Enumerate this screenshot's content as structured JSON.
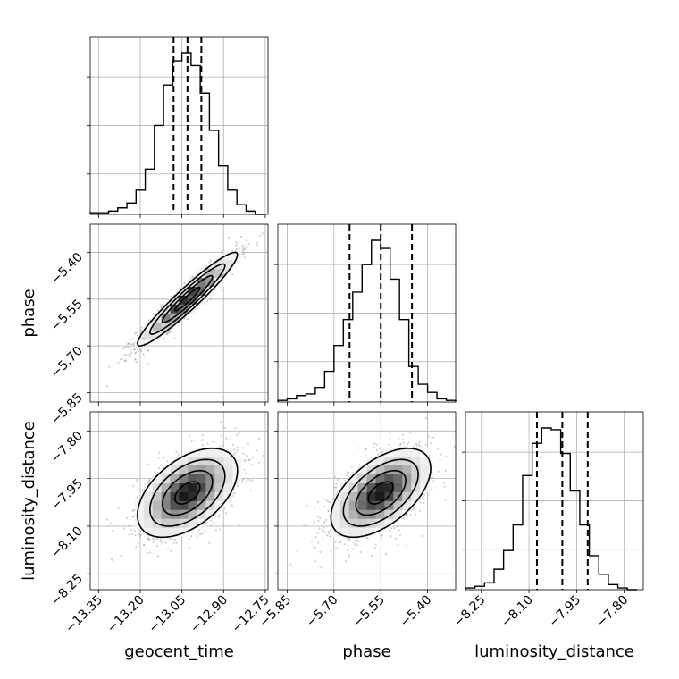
{
  "chart_data": {
    "type": "corner",
    "parameters": [
      "geocent_time",
      "phase",
      "luminosity_distance"
    ],
    "axes": {
      "geocent_time": {
        "range": [
          -13.38,
          -12.74
        ],
        "ticks": [
          -13.35,
          -13.2,
          -13.05,
          -12.9,
          -12.75
        ],
        "tick_labels": [
          "−13.35",
          "−13.20",
          "−13.05",
          "−12.90",
          "−12.75"
        ]
      },
      "phase": {
        "range": [
          -5.88,
          -5.31
        ],
        "ticks": [
          -5.85,
          -5.7,
          -5.55,
          -5.4
        ],
        "tick_labels": [
          "−5.85",
          "−5.70",
          "−5.55",
          "−5.40"
        ]
      },
      "luminosity_distance": {
        "range": [
          -8.3,
          -7.74
        ],
        "ticks": [
          -8.25,
          -8.1,
          -7.95,
          -7.8
        ],
        "tick_labels": [
          "−8.25",
          "−8.10",
          "−7.95",
          "−7.80"
        ]
      }
    },
    "marginals": [
      {
        "parameter": "geocent_time",
        "bin_edges": [
          -13.38,
          -13.347,
          -13.314,
          -13.281,
          -13.248,
          -13.215,
          -13.182,
          -13.149,
          -13.116,
          -13.083,
          -13.05,
          -13.017,
          -12.984,
          -12.951,
          -12.918,
          -12.885,
          -12.852,
          -12.819,
          -12.786,
          -12.753
        ],
        "counts": [
          1,
          1,
          2,
          4,
          7,
          15,
          28,
          55,
          80,
          95,
          100,
          92,
          75,
          52,
          30,
          15,
          6,
          2,
          0
        ],
        "quantiles": [
          -13.08,
          -13.03,
          -12.98
        ]
      },
      {
        "parameter": "phase",
        "bin_edges": [
          -5.88,
          -5.85,
          -5.82,
          -5.79,
          -5.76,
          -5.73,
          -5.7,
          -5.67,
          -5.64,
          -5.61,
          -5.58,
          -5.55,
          -5.52,
          -5.49,
          -5.46,
          -5.43,
          -5.4,
          -5.37,
          -5.34,
          -5.31
        ],
        "counts": [
          1,
          2,
          4,
          5,
          9,
          19,
          35,
          51,
          68,
          85,
          100,
          95,
          76,
          51,
          22,
          11,
          6,
          2,
          1
        ],
        "quantiles": [
          -5.65,
          -5.55,
          -5.45
        ]
      },
      {
        "parameter": "luminosity_distance",
        "bin_edges": [
          -8.3,
          -8.27,
          -8.24,
          -8.21,
          -8.18,
          -8.15,
          -8.12,
          -8.09,
          -8.06,
          -8.03,
          -8.0,
          -7.97,
          -7.94,
          -7.91,
          -7.88,
          -7.85,
          -7.82,
          -7.79,
          -7.76
        ],
        "counts": [
          1,
          2,
          4,
          12,
          23,
          38,
          67,
          86,
          95,
          94,
          80,
          58,
          38,
          20,
          9,
          3,
          1,
          0
        ],
        "quantiles": [
          -8.075,
          -7.995,
          -7.915
        ]
      }
    ],
    "joints": [
      {
        "x": "geocent_time",
        "y": "phase",
        "mean": [
          -13.03,
          -5.55
        ],
        "sd": [
          0.09,
          0.075
        ],
        "rho": 0.95,
        "contour_levels_sigma": [
          0.5,
          1.0,
          1.5,
          2.0
        ]
      },
      {
        "x": "geocent_time",
        "y": "luminosity_distance",
        "mean": [
          -13.03,
          -7.995
        ],
        "sd": [
          0.09,
          0.07
        ],
        "rho": 0.5,
        "contour_levels_sigma": [
          0.5,
          1.0,
          1.5,
          2.0
        ]
      },
      {
        "x": "phase",
        "y": "luminosity_distance",
        "mean": [
          -5.55,
          -7.995
        ],
        "sd": [
          0.08,
          0.07
        ],
        "rho": 0.55,
        "contour_levels_sigma": [
          0.5,
          1.0,
          1.5,
          2.0
        ]
      }
    ],
    "grid": true,
    "xlabels": [
      "geocent_time",
      "phase",
      "luminosity_distance"
    ],
    "ylabels": [
      "phase",
      "luminosity_distance"
    ]
  }
}
